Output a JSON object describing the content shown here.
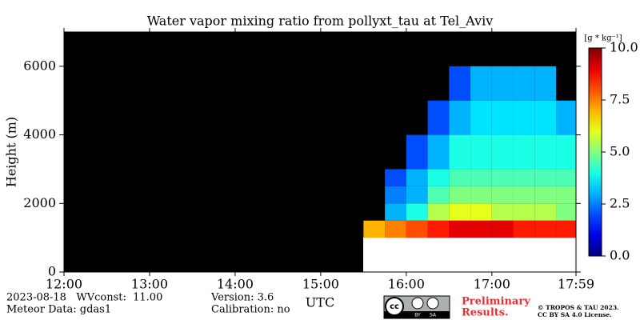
{
  "chart_data": {
    "type": "heatmap",
    "title": "Water vapor mixing ratio from pollyxt_tau at Tel_Aviv",
    "y_label": "Height (m)",
    "x_label": "UTC",
    "xlim": [
      12,
      17.9833
    ],
    "xticks": [
      {
        "value": 12,
        "label": "12:00"
      },
      {
        "value": 13,
        "label": "13:00"
      },
      {
        "value": 14,
        "label": "14:00"
      },
      {
        "value": 15,
        "label": "15:00"
      },
      {
        "value": 16,
        "label": "16:00"
      },
      {
        "value": 17,
        "label": "17:00"
      },
      {
        "value": 17.9833,
        "label": "17:59"
      }
    ],
    "ylim": [
      0,
      7000
    ],
    "yticks": [
      0,
      2000,
      4000,
      6000
    ],
    "x_edges": [
      15.5,
      15.75,
      16,
      16.25,
      16.5,
      16.75,
      17,
      17.25,
      17.5,
      17.75,
      17.9833
    ],
    "y_edges": [
      0,
      500,
      1000,
      1500,
      2000,
      2500,
      3000,
      4000,
      5000,
      6000,
      7000
    ],
    "z": [
      [
        null,
        null,
        null,
        null,
        null,
        null,
        null,
        null,
        null,
        null
      ],
      [
        null,
        null,
        null,
        null,
        null,
        null,
        null,
        null,
        null,
        null
      ],
      [
        7,
        7.5,
        8,
        8.5,
        9,
        9,
        9,
        8.5,
        8.5,
        8.5
      ],
      [
        null,
        3,
        4,
        5.5,
        6,
        6,
        5.5,
        5.5,
        5.5,
        5
      ],
      [
        null,
        2.5,
        3,
        4.5,
        5,
        5,
        5,
        5,
        5,
        5
      ],
      [
        null,
        2,
        3,
        4,
        4.5,
        4.5,
        4.5,
        4.5,
        4.5,
        4.5
      ],
      [
        null,
        null,
        2,
        3,
        4,
        4,
        4,
        4,
        4,
        4
      ],
      [
        null,
        null,
        null,
        2,
        3,
        3.5,
        3.5,
        3.5,
        3.5,
        3
      ],
      [
        null,
        null,
        null,
        null,
        2,
        3,
        3,
        3,
        3,
        null
      ],
      [
        null,
        null,
        null,
        null,
        null,
        null,
        null,
        null,
        null,
        null
      ]
    ],
    "colorbar_label": "[g * kg⁻¹]",
    "clim": [
      0,
      10
    ],
    "cticks": [
      {
        "value": 0,
        "label": "0.0"
      },
      {
        "value": 2.5,
        "label": "2.5"
      },
      {
        "value": 5,
        "label": "5.0"
      },
      {
        "value": 7.5,
        "label": "7.5"
      },
      {
        "value": 10,
        "label": "10.0"
      }
    ],
    "colormap": "jet",
    "background": "#000000"
  },
  "footer": {
    "date_line": "2023-08-18   WVconst:  11.00",
    "meteor": "Meteor Data: gdas1",
    "version": "Version: 3.6",
    "calibration": "Calibration: no",
    "preliminary": [
      "Preliminary",
      "Results."
    ],
    "license": [
      "© TROPOS & TAU 2023.",
      "CC BY SA 4.0 License."
    ],
    "badge": [
      "cc",
      "BY",
      "SA"
    ]
  }
}
